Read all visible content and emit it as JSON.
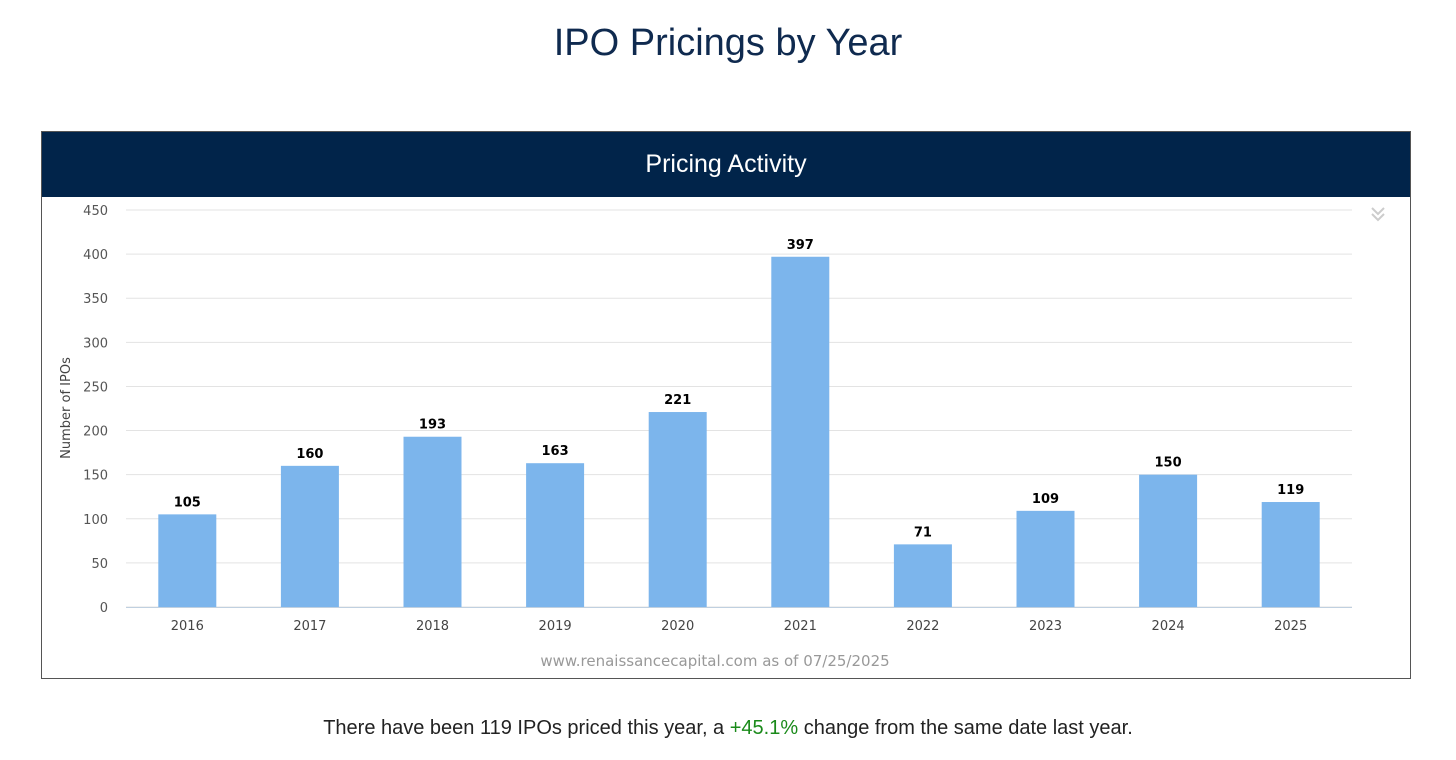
{
  "page_title": "IPO Pricings by Year",
  "chart_header": "Pricing Activity",
  "menu_icon": "double-chevron-down-icon",
  "footer": {
    "prefix": "There have been 119 IPOs priced this year, a ",
    "change": "+45.1%",
    "suffix": " change from the same date last year.",
    "change_color": "#1a8a1a"
  },
  "chart_data": {
    "type": "bar",
    "title": "Pricing Activity",
    "categories": [
      "2016",
      "2017",
      "2018",
      "2019",
      "2020",
      "2021",
      "2022",
      "2023",
      "2024",
      "2025"
    ],
    "values": [
      105,
      160,
      193,
      163,
      221,
      397,
      71,
      109,
      150,
      119
    ],
    "ylabel": "Number of IPOs",
    "xlabel": "",
    "ylim": [
      0,
      450
    ],
    "yticks": [
      0,
      50,
      100,
      150,
      200,
      250,
      300,
      350,
      400,
      450
    ],
    "grid": true,
    "bar_color": "#7cb5ec",
    "credit": "www.renaissancecapital.com as of 07/25/2025"
  }
}
